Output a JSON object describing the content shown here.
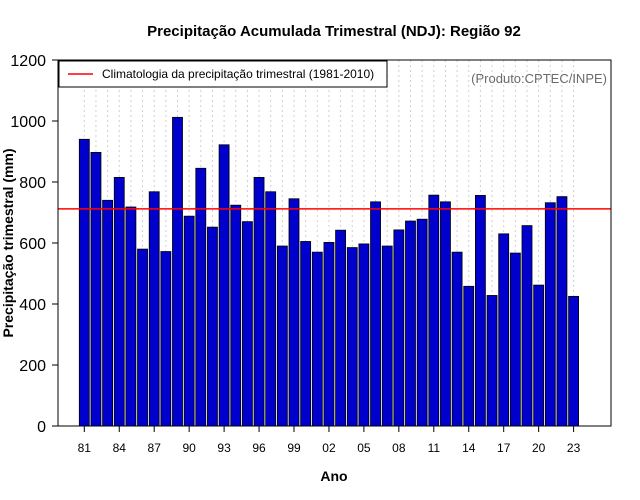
{
  "chart_data": {
    "type": "bar",
    "title": "Precipitação Acumulada Trimestral (NDJ): Região 92",
    "xlabel": "Ano",
    "ylabel": "Precipitação trimestral (mm)",
    "credit": "(Produto:CPTEC/INPE)",
    "ylim": [
      0,
      1200
    ],
    "yticks": [
      0,
      200,
      400,
      600,
      800,
      1000,
      1200
    ],
    "xtick_labels": [
      "81",
      "84",
      "87",
      "90",
      "93",
      "96",
      "99",
      "02",
      "05",
      "08",
      "11",
      "14",
      "17",
      "20",
      "23"
    ],
    "years": [
      1981,
      1982,
      1983,
      1984,
      1985,
      1986,
      1987,
      1988,
      1989,
      1990,
      1991,
      1992,
      1993,
      1994,
      1995,
      1996,
      1997,
      1998,
      1999,
      2000,
      2001,
      2002,
      2003,
      2004,
      2005,
      2006,
      2007,
      2008,
      2009,
      2010,
      2011,
      2012,
      2013,
      2014,
      2015,
      2016,
      2017,
      2018,
      2019,
      2020,
      2021,
      2022,
      2023
    ],
    "values": [
      940,
      897,
      740,
      815,
      718,
      580,
      768,
      572,
      1012,
      688,
      845,
      652,
      922,
      724,
      670,
      815,
      768,
      590,
      745,
      605,
      570,
      602,
      642,
      585,
      597,
      735,
      590,
      643,
      672,
      678,
      757,
      735,
      570,
      458,
      756,
      428,
      630,
      567,
      657,
      462,
      732,
      752,
      425
    ],
    "series_name": "Precipitação trimestral",
    "bar_color": "#0000cc",
    "climatology": {
      "label": "Climatologia da precipitação trimestral (1981-2010)",
      "value": 712,
      "color": "#ff0000"
    },
    "legend_position": "top-left",
    "grid": "vertical dotted"
  }
}
